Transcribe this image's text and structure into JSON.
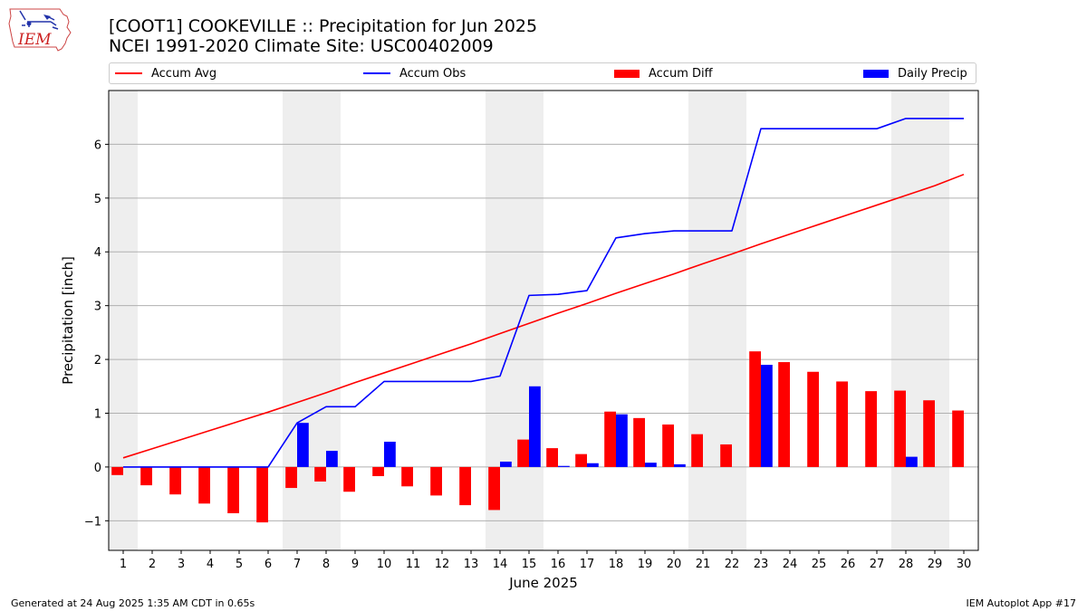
{
  "header": {
    "title_line1": "[COOT1] COOKEVILLE :: Precipitation for Jun 2025",
    "title_line2": "NCEI 1991-2020 Climate Site: USC00402009"
  },
  "logo": {
    "text": "IEM",
    "icon": "iem-iowa-logo-icon"
  },
  "legend": [
    {
      "label": "Accum Avg",
      "kind": "line",
      "color": "#ff0000"
    },
    {
      "label": "Accum Obs",
      "kind": "line",
      "color": "#0000ff"
    },
    {
      "label": "Accum Diff",
      "kind": "bar",
      "color": "#ff0000"
    },
    {
      "label": "Daily Precip",
      "kind": "bar",
      "color": "#0000ff"
    }
  ],
  "footer": {
    "left": "Generated at 24 Aug 2025 1:35 AM CDT in 0.65s",
    "right": "IEM Autoplot App #17"
  },
  "chart_data": {
    "type": "bar",
    "xlabel": "June 2025",
    "ylabel": "Precipitation [inch]",
    "ylim": [
      -1.55,
      7.0
    ],
    "xlim": [
      0.5,
      30.5
    ],
    "yticks": [
      -1,
      0,
      1,
      2,
      3,
      4,
      5,
      6
    ],
    "ytick_labels": [
      "−1",
      "0",
      "1",
      "2",
      "3",
      "4",
      "5",
      "6"
    ],
    "grid": "horizontal",
    "legend_position": "top",
    "shaded_day_ranges": [
      [
        1,
        1
      ],
      [
        7,
        8
      ],
      [
        14,
        15
      ],
      [
        21,
        22
      ],
      [
        28,
        29
      ]
    ],
    "days": [
      1,
      2,
      3,
      4,
      5,
      6,
      7,
      8,
      9,
      10,
      11,
      12,
      13,
      14,
      15,
      16,
      17,
      18,
      19,
      20,
      21,
      22,
      23,
      24,
      25,
      26,
      27,
      28,
      29,
      30
    ],
    "series": [
      {
        "name": "Accum Avg",
        "kind": "line",
        "color": "#ff0000",
        "values": [
          0.17,
          0.34,
          0.51,
          0.68,
          0.85,
          1.02,
          1.2,
          1.38,
          1.57,
          1.75,
          1.93,
          2.11,
          2.29,
          2.48,
          2.67,
          2.86,
          3.04,
          3.23,
          3.41,
          3.59,
          3.78,
          3.96,
          4.15,
          4.33,
          4.51,
          4.69,
          4.87,
          5.05,
          5.23,
          5.44
        ]
      },
      {
        "name": "Accum Obs",
        "kind": "line",
        "color": "#0000ff",
        "values": [
          0,
          0,
          0,
          0,
          0,
          0,
          0.82,
          1.12,
          1.12,
          1.59,
          1.59,
          1.59,
          1.59,
          1.69,
          3.19,
          3.21,
          3.28,
          4.26,
          4.34,
          4.39,
          4.39,
          4.39,
          6.29,
          6.29,
          6.29,
          6.29,
          6.29,
          6.48,
          6.48,
          6.48
        ]
      },
      {
        "name": "Accum Diff",
        "kind": "bar",
        "color": "#ff0000",
        "values": [
          -0.15,
          -0.34,
          -0.51,
          -0.68,
          -0.86,
          -1.03,
          -0.39,
          -0.27,
          -0.46,
          -0.17,
          -0.36,
          -0.53,
          -0.71,
          -0.8,
          0.51,
          0.35,
          0.24,
          1.03,
          0.91,
          0.79,
          0.61,
          0.42,
          2.15,
          1.95,
          1.77,
          1.59,
          1.41,
          1.42,
          1.24,
          1.05
        ]
      },
      {
        "name": "Daily Precip",
        "kind": "bar",
        "color": "#0000ff",
        "values": [
          0,
          0,
          0,
          0,
          0,
          0,
          0.82,
          0.3,
          0,
          0.47,
          0,
          0,
          0,
          0.1,
          1.5,
          0.02,
          0.07,
          0.98,
          0.08,
          0.05,
          0,
          0,
          1.9,
          0,
          0,
          0,
          0,
          0.19,
          0,
          0
        ]
      }
    ]
  }
}
